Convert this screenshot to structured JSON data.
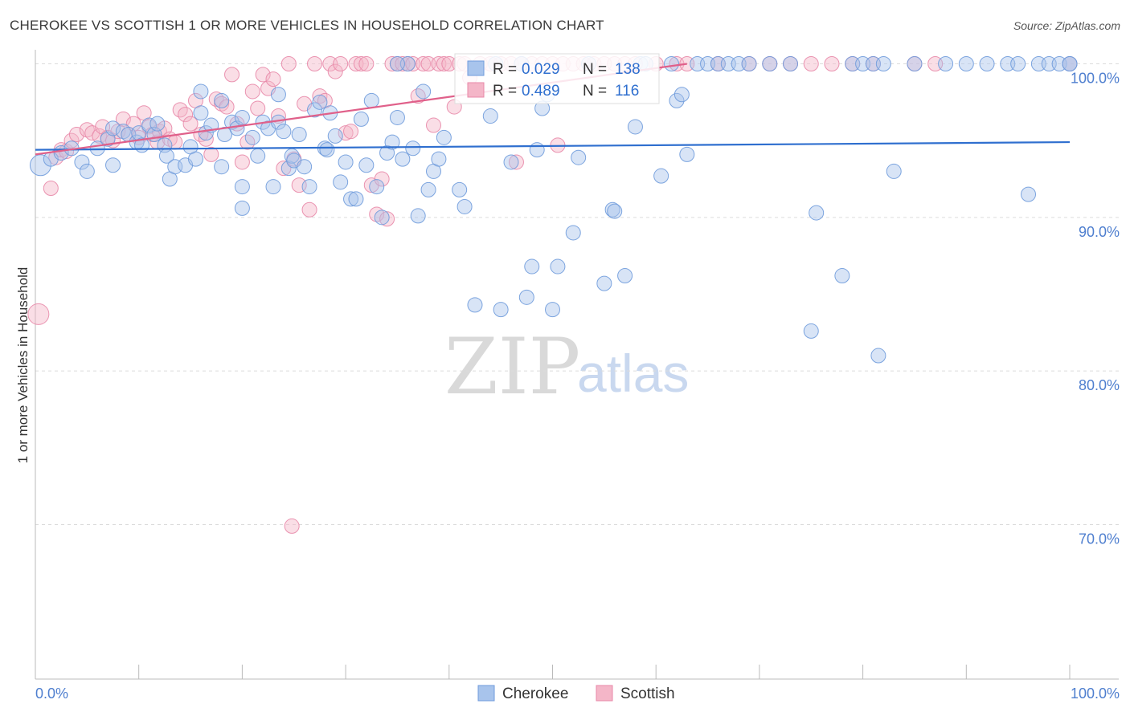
{
  "title": "CHEROKEE VS SCOTTISH 1 OR MORE VEHICLES IN HOUSEHOLD CORRELATION CHART",
  "source": "Source: ZipAtlas.com",
  "watermark": {
    "zip": "ZIP",
    "atlas": "atlas"
  },
  "colors": {
    "cherokee_fill": "#a8c4ec",
    "cherokee_stroke": "#6f9bdc",
    "cherokee_line": "#2f6fcf",
    "scottish_fill": "#f4b6c8",
    "scottish_stroke": "#e888a8",
    "scottish_line": "#e0608a",
    "value_text": "#2f6fcf",
    "grid": "#dcdcdc"
  },
  "legend_box": {
    "rows": [
      {
        "r_label": "R =",
        "r_value": "0.029",
        "n_label": "N =",
        "n_value": "138"
      },
      {
        "r_label": "R =",
        "r_value": "0.489",
        "n_label": "N =",
        "n_value": "116"
      }
    ]
  },
  "bottom_legend": [
    "Cherokee",
    "Scottish"
  ],
  "chart_data": {
    "type": "scatter",
    "title": "CHEROKEE VS SCOTTISH 1 OR MORE VEHICLES IN HOUSEHOLD CORRELATION CHART",
    "xlabel": "",
    "ylabel": "1 or more Vehicles in Household",
    "xlim": [
      0,
      100
    ],
    "ylim": [
      60,
      101
    ],
    "x_tick_labels": [
      "0.0%",
      "100.0%"
    ],
    "y_ticks": [
      70,
      80,
      90,
      100
    ],
    "y_tick_labels": [
      "70.0%",
      "80.0%",
      "90.0%",
      "100.0%"
    ],
    "grid": true,
    "series": [
      {
        "name": "Cherokee",
        "R": 0.029,
        "N": 138,
        "trend": [
          [
            0,
            94.4
          ],
          [
            100,
            94.9
          ]
        ],
        "points": [
          [
            0.5,
            93.4
          ],
          [
            1.5,
            93.8
          ],
          [
            2.5,
            94.2
          ],
          [
            3.5,
            94.5
          ],
          [
            4.5,
            93.6
          ],
          [
            5,
            93
          ],
          [
            6,
            94.5
          ],
          [
            7,
            95.1
          ],
          [
            7.5,
            95.8
          ],
          [
            7.5,
            93.4
          ],
          [
            8.5,
            95.6
          ],
          [
            9,
            95.4
          ],
          [
            9.8,
            94.9
          ],
          [
            10,
            95.5
          ],
          [
            10.3,
            94.7
          ],
          [
            11,
            96
          ],
          [
            11.5,
            95.4
          ],
          [
            11.8,
            96.1
          ],
          [
            12.5,
            94.7
          ],
          [
            12.7,
            94
          ],
          [
            13,
            92.5
          ],
          [
            13.5,
            93.3
          ],
          [
            14.5,
            93.4
          ],
          [
            15,
            94.6
          ],
          [
            15.5,
            93.8
          ],
          [
            16,
            96.8
          ],
          [
            16,
            98.2
          ],
          [
            16.5,
            95.5
          ],
          [
            17,
            96
          ],
          [
            18,
            97.6
          ],
          [
            18,
            93.3
          ],
          [
            18.3,
            95.4
          ],
          [
            19,
            96.2
          ],
          [
            19.5,
            95.8
          ],
          [
            20,
            92
          ],
          [
            20,
            90.6
          ],
          [
            21,
            95.2
          ],
          [
            21.5,
            94
          ],
          [
            22,
            96.2
          ],
          [
            22.5,
            95.8
          ],
          [
            23,
            92
          ],
          [
            23.5,
            98
          ],
          [
            23.5,
            96.2
          ],
          [
            24.5,
            93.2
          ],
          [
            24.8,
            94
          ],
          [
            25,
            93.7
          ],
          [
            25.5,
            95.4
          ],
          [
            26,
            93.3
          ],
          [
            26.5,
            92
          ],
          [
            27,
            97
          ],
          [
            27.5,
            97.5
          ],
          [
            28,
            94.5
          ],
          [
            28.2,
            94.4
          ],
          [
            28.5,
            96.8
          ],
          [
            29,
            95.3
          ],
          [
            29.5,
            92.3
          ],
          [
            30,
            93.6
          ],
          [
            30.5,
            91.2
          ],
          [
            31,
            91.2
          ],
          [
            31.5,
            96.4
          ],
          [
            32,
            93.4
          ],
          [
            32.5,
            97.6
          ],
          [
            33,
            92
          ],
          [
            33.5,
            90
          ],
          [
            34,
            94.2
          ],
          [
            34.5,
            94.9
          ],
          [
            35,
            96.5
          ],
          [
            35.5,
            93.8
          ],
          [
            36,
            100
          ],
          [
            36.5,
            94.5
          ],
          [
            37,
            90.1
          ],
          [
            37.5,
            98.2
          ],
          [
            38,
            91.8
          ],
          [
            38.5,
            93
          ],
          [
            39,
            93.8
          ],
          [
            39.5,
            95.2
          ],
          [
            41,
            91.8
          ],
          [
            41.5,
            90.7
          ],
          [
            42.5,
            84.3
          ],
          [
            44,
            96.6
          ],
          [
            44.5,
            100
          ],
          [
            45,
            84
          ],
          [
            46,
            93.6
          ],
          [
            47,
            100
          ],
          [
            47.5,
            84.8
          ],
          [
            48,
            86.8
          ],
          [
            48.5,
            94.4
          ],
          [
            49,
            97.1
          ],
          [
            49.5,
            98
          ],
          [
            50,
            84
          ],
          [
            50.5,
            86.8
          ],
          [
            52,
            89
          ],
          [
            52.5,
            93.9
          ],
          [
            53.5,
            100
          ],
          [
            55,
            85.7
          ],
          [
            55.8,
            90.5
          ],
          [
            56,
            90.4
          ],
          [
            57,
            86.2
          ],
          [
            58,
            95.9
          ],
          [
            58.5,
            100
          ],
          [
            59,
            100
          ],
          [
            60.5,
            92.7
          ],
          [
            61.5,
            100
          ],
          [
            62,
            97.6
          ],
          [
            62.5,
            98
          ],
          [
            63,
            94.1
          ],
          [
            64,
            100
          ],
          [
            65,
            100
          ],
          [
            66,
            100
          ],
          [
            67,
            100
          ],
          [
            68,
            100
          ],
          [
            69,
            100
          ],
          [
            71,
            100
          ],
          [
            73,
            100
          ],
          [
            75,
            82.6
          ],
          [
            75.5,
            90.3
          ],
          [
            78,
            86.2
          ],
          [
            79,
            100
          ],
          [
            80,
            100
          ],
          [
            81,
            100
          ],
          [
            81.5,
            81
          ],
          [
            82,
            100
          ],
          [
            83,
            93
          ],
          [
            85,
            100
          ],
          [
            88,
            100
          ],
          [
            90,
            100
          ],
          [
            92,
            100
          ],
          [
            94,
            100
          ],
          [
            95,
            100
          ],
          [
            96,
            91.5
          ],
          [
            97,
            100
          ],
          [
            98,
            100
          ],
          [
            99,
            100
          ],
          [
            100,
            100
          ],
          [
            100,
            100
          ],
          [
            20,
            96.5
          ],
          [
            24,
            95.6
          ],
          [
            35,
            100
          ]
        ]
      },
      {
        "name": "Scottish",
        "R": 0.489,
        "N": 116,
        "trend": [
          [
            0,
            94.1
          ],
          [
            63,
            100
          ]
        ],
        "points": [
          [
            0.3,
            83.7
          ],
          [
            1.5,
            91.9
          ],
          [
            2,
            93.9
          ],
          [
            2.5,
            94.4
          ],
          [
            3,
            94.3
          ],
          [
            3.5,
            95
          ],
          [
            4,
            95.4
          ],
          [
            5,
            95.7
          ],
          [
            5.5,
            95.5
          ],
          [
            6.2,
            95.3
          ],
          [
            6.5,
            95.9
          ],
          [
            7,
            95.2
          ],
          [
            7.5,
            95
          ],
          [
            8,
            95.6
          ],
          [
            8.5,
            96.4
          ],
          [
            9,
            95.4
          ],
          [
            9.5,
            96.1
          ],
          [
            10,
            95.2
          ],
          [
            10.5,
            96.8
          ],
          [
            11,
            95.9
          ],
          [
            11.3,
            95.4
          ],
          [
            11.8,
            94.9
          ],
          [
            12,
            95.6
          ],
          [
            12.5,
            95.8
          ],
          [
            13,
            95.1
          ],
          [
            13.5,
            94.9
          ],
          [
            14,
            97
          ],
          [
            14.5,
            96.7
          ],
          [
            15,
            96.1
          ],
          [
            15.5,
            97.6
          ],
          [
            16,
            95.4
          ],
          [
            16.5,
            95.1
          ],
          [
            17,
            94.1
          ],
          [
            17.5,
            97.7
          ],
          [
            18,
            97.4
          ],
          [
            18.5,
            97.2
          ],
          [
            19,
            99.3
          ],
          [
            19.5,
            96.1
          ],
          [
            20,
            93.6
          ],
          [
            20.5,
            94.9
          ],
          [
            21,
            98.2
          ],
          [
            21.5,
            97.1
          ],
          [
            22,
            99.3
          ],
          [
            22.5,
            98.4
          ],
          [
            23,
            99
          ],
          [
            23.5,
            96.6
          ],
          [
            24,
            93.2
          ],
          [
            24.5,
            100
          ],
          [
            24.8,
            69.9
          ],
          [
            25,
            93.8
          ],
          [
            25.5,
            92.1
          ],
          [
            26,
            97.4
          ],
          [
            26.5,
            90.5
          ],
          [
            27,
            100
          ],
          [
            27.5,
            97.9
          ],
          [
            28,
            97.6
          ],
          [
            28.5,
            100
          ],
          [
            29,
            99.5
          ],
          [
            29.5,
            100
          ],
          [
            30,
            95.5
          ],
          [
            30.5,
            95.6
          ],
          [
            31,
            100
          ],
          [
            31.5,
            100
          ],
          [
            32,
            100
          ],
          [
            32.5,
            92.1
          ],
          [
            33,
            90.2
          ],
          [
            33.5,
            92.5
          ],
          [
            34,
            89.9
          ],
          [
            34.5,
            100
          ],
          [
            35,
            100
          ],
          [
            35.5,
            100
          ],
          [
            36,
            100
          ],
          [
            36.5,
            100
          ],
          [
            37,
            97.9
          ],
          [
            37.5,
            100
          ],
          [
            38,
            100
          ],
          [
            38.5,
            96
          ],
          [
            39,
            100
          ],
          [
            39.5,
            100
          ],
          [
            40,
            100
          ],
          [
            40.5,
            97.2
          ],
          [
            41,
            100
          ],
          [
            41.5,
            100
          ],
          [
            42,
            99.1
          ],
          [
            43,
            100
          ],
          [
            44,
            100
          ],
          [
            45,
            100
          ],
          [
            46,
            100
          ],
          [
            46.5,
            93.6
          ],
          [
            47,
            100
          ],
          [
            48,
            100
          ],
          [
            49,
            100
          ],
          [
            50,
            100
          ],
          [
            50.5,
            94.7
          ],
          [
            51,
            100
          ],
          [
            52,
            100
          ],
          [
            53,
            100
          ],
          [
            54,
            100
          ],
          [
            55,
            100
          ],
          [
            56,
            100
          ],
          [
            57,
            100
          ],
          [
            58,
            100
          ],
          [
            60,
            100
          ],
          [
            62,
            100
          ],
          [
            63,
            100
          ],
          [
            66,
            100
          ],
          [
            69,
            100
          ],
          [
            71,
            100
          ],
          [
            73,
            100
          ],
          [
            75,
            100
          ],
          [
            77,
            100
          ],
          [
            79,
            100
          ],
          [
            81,
            100
          ],
          [
            85,
            100
          ],
          [
            87,
            100
          ],
          [
            100,
            100
          ]
        ]
      }
    ]
  }
}
